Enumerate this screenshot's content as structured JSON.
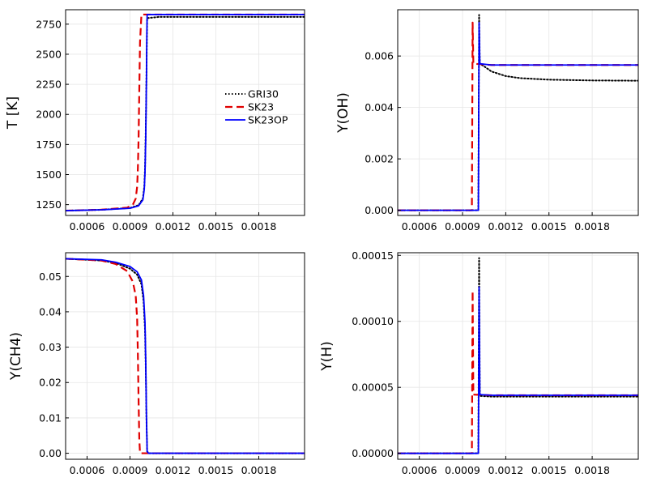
{
  "chart_data": [
    {
      "type": "line",
      "title": "",
      "xlabel": "",
      "ylabel": "T [K]",
      "xlim": [
        0.00045,
        0.00212
      ],
      "ylim": [
        1160,
        2870
      ],
      "xticks": [
        0.0006,
        0.0009,
        0.0012,
        0.0015,
        0.0018
      ],
      "xtick_labels": [
        "0.0006",
        "0.0009",
        "0.0012",
        "0.0015",
        "0.0018"
      ],
      "yticks": [
        1250,
        1500,
        1750,
        2000,
        2250,
        2500,
        2750
      ],
      "ytick_labels": [
        "1250",
        "1500",
        "1750",
        "2000",
        "2250",
        "2500",
        "2750"
      ],
      "grid": true,
      "legend": "right",
      "series": [
        {
          "name": "GRI30",
          "color": "#000000",
          "style": "dotted",
          "points": [
            [
              0.00045,
              1200
            ],
            [
              0.0007,
              1207
            ],
            [
              0.0009,
              1222
            ],
            [
              0.00096,
              1245
            ],
            [
              0.00099,
              1300
            ],
            [
              0.001,
              1400
            ],
            [
              0.001005,
              1550
            ],
            [
              0.00101,
              1850
            ],
            [
              0.001015,
              2300
            ],
            [
              0.001018,
              2650
            ],
            [
              0.00102,
              2800
            ],
            [
              0.0011,
              2810
            ],
            [
              0.00212,
              2810
            ]
          ]
        },
        {
          "name": "SK23",
          "color": "#e00000",
          "style": "dashed",
          "points": [
            [
              0.00045,
              1200
            ],
            [
              0.0007,
              1208
            ],
            [
              0.00088,
              1225
            ],
            [
              0.00092,
              1250
            ],
            [
              0.00094,
              1300
            ],
            [
              0.00095,
              1400
            ],
            [
              0.000955,
              1550
            ],
            [
              0.00096,
              1800
            ],
            [
              0.000965,
              2200
            ],
            [
              0.00097,
              2600
            ],
            [
              0.00098,
              2830
            ],
            [
              0.0011,
              2830
            ],
            [
              0.00212,
              2830
            ]
          ]
        },
        {
          "name": "SK23OP",
          "color": "#0000ff",
          "style": "solid",
          "points": [
            [
              0.00045,
              1200
            ],
            [
              0.0007,
              1207
            ],
            [
              0.0009,
              1220
            ],
            [
              0.00096,
              1240
            ],
            [
              0.00099,
              1290
            ],
            [
              0.001,
              1380
            ],
            [
              0.001005,
              1520
            ],
            [
              0.00101,
              1800
            ],
            [
              0.001015,
              2300
            ],
            [
              0.001018,
              2700
            ],
            [
              0.00102,
              2830
            ],
            [
              0.0011,
              2830
            ],
            [
              0.00212,
              2830
            ]
          ]
        }
      ]
    },
    {
      "type": "line",
      "title": "",
      "xlabel": "",
      "ylabel": "Y(OH)",
      "xlim": [
        0.00045,
        0.00212
      ],
      "ylim": [
        -0.0002,
        0.0078
      ],
      "xticks": [
        0.0006,
        0.0009,
        0.0012,
        0.0015,
        0.0018
      ],
      "xtick_labels": [
        "0.0006",
        "0.0009",
        "0.0012",
        "0.0015",
        "0.0018"
      ],
      "yticks": [
        0,
        0.002,
        0.004,
        0.006
      ],
      "ytick_labels": [
        "0.000",
        "0.002",
        "0.004",
        "0.006"
      ],
      "grid": true,
      "series": [
        {
          "name": "GRI30",
          "color": "#000000",
          "style": "dotted",
          "points": [
            [
              0.00045,
              0
            ],
            [
              0.00101,
              0
            ],
            [
              0.001015,
              0.0076
            ],
            [
              0.00102,
              0.0057
            ],
            [
              0.00105,
              0.0056
            ],
            [
              0.0011,
              0.0054
            ],
            [
              0.0012,
              0.00522
            ],
            [
              0.0013,
              0.00514
            ],
            [
              0.0015,
              0.00508
            ],
            [
              0.0018,
              0.00505
            ],
            [
              0.00212,
              0.00504
            ]
          ]
        },
        {
          "name": "SK23",
          "color": "#e00000",
          "style": "dashed",
          "points": [
            [
              0.00045,
              0
            ],
            [
              0.000965,
              0
            ],
            [
              0.00097,
              0.0073
            ],
            [
              0.000975,
              0.0057
            ],
            [
              0.0011,
              0.00565
            ],
            [
              0.00212,
              0.00565
            ]
          ]
        },
        {
          "name": "SK23OP",
          "color": "#0000ff",
          "style": "solid",
          "points": [
            [
              0.00045,
              0
            ],
            [
              0.00101,
              0
            ],
            [
              0.001015,
              0.0073
            ],
            [
              0.00102,
              0.0057
            ],
            [
              0.0011,
              0.00565
            ],
            [
              0.00212,
              0.00565
            ]
          ]
        }
      ]
    },
    {
      "type": "line",
      "title": "",
      "xlabel": "",
      "ylabel": "Y(CH4)",
      "xlim": [
        0.00045,
        0.00212
      ],
      "ylim": [
        -0.0017,
        0.0567
      ],
      "xticks": [
        0.0006,
        0.0009,
        0.0012,
        0.0015,
        0.0018
      ],
      "xtick_labels": [
        "0.0006",
        "0.0009",
        "0.0012",
        "0.0015",
        "0.0018"
      ],
      "yticks": [
        0,
        0.01,
        0.02,
        0.03,
        0.04,
        0.05
      ],
      "ytick_labels": [
        "0.00",
        "0.01",
        "0.02",
        "0.03",
        "0.04",
        "0.05"
      ],
      "grid": true,
      "series": [
        {
          "name": "GRI30",
          "color": "#000000",
          "style": "dotted",
          "points": [
            [
              0.00045,
              0.055
            ],
            [
              0.0007,
              0.0545
            ],
            [
              0.0008,
              0.0538
            ],
            [
              0.0009,
              0.0522
            ],
            [
              0.00095,
              0.0505
            ],
            [
              0.00098,
              0.0478
            ],
            [
              0.000995,
              0.043
            ],
            [
              0.001005,
              0.035
            ],
            [
              0.00101,
              0.025
            ],
            [
              0.001015,
              0.01
            ],
            [
              0.00102,
              0.0005
            ],
            [
              0.00103,
              0
            ],
            [
              0.00212,
              0
            ]
          ]
        },
        {
          "name": "SK23",
          "color": "#e00000",
          "style": "dashed",
          "points": [
            [
              0.00045,
              0.055
            ],
            [
              0.0007,
              0.0545
            ],
            [
              0.0008,
              0.0535
            ],
            [
              0.00088,
              0.0515
            ],
            [
              0.00092,
              0.0485
            ],
            [
              0.00094,
              0.0445
            ],
            [
              0.00095,
              0.038
            ],
            [
              0.000955,
              0.028
            ],
            [
              0.00096,
              0.015
            ],
            [
              0.000965,
              0.004
            ],
            [
              0.00097,
              0
            ],
            [
              0.00212,
              0
            ]
          ]
        },
        {
          "name": "SK23OP",
          "color": "#0000ff",
          "style": "solid",
          "points": [
            [
              0.00045,
              0.055
            ],
            [
              0.0007,
              0.0547
            ],
            [
              0.0008,
              0.054
            ],
            [
              0.0009,
              0.0528
            ],
            [
              0.00095,
              0.0513
            ],
            [
              0.00098,
              0.049
            ],
            [
              0.000995,
              0.0445
            ],
            [
              0.001005,
              0.037
            ],
            [
              0.00101,
              0.026
            ],
            [
              0.001015,
              0.01
            ],
            [
              0.00102,
              0.0005
            ],
            [
              0.00103,
              0
            ],
            [
              0.00212,
              0
            ]
          ]
        }
      ]
    },
    {
      "type": "line",
      "title": "",
      "xlabel": "",
      "ylabel": "Y(H)",
      "xlim": [
        0.00045,
        0.00212
      ],
      "ylim": [
        -4.5e-06,
        0.000152
      ],
      "xticks": [
        0.0006,
        0.0009,
        0.0012,
        0.0015,
        0.0018
      ],
      "xtick_labels": [
        "0.0006",
        "0.0009",
        "0.0012",
        "0.0015",
        "0.0018"
      ],
      "yticks": [
        0,
        5e-05,
        0.0001,
        0.00015
      ],
      "ytick_labels": [
        "0.00000",
        "0.00005",
        "0.00010",
        "0.00015"
      ],
      "grid": true,
      "series": [
        {
          "name": "GRI30",
          "color": "#000000",
          "style": "dotted",
          "points": [
            [
              0.00045,
              0
            ],
            [
              0.00101,
              0
            ],
            [
              0.001015,
              0.000148
            ],
            [
              0.00102,
              4.35e-05
            ],
            [
              0.0011,
              4.3e-05
            ],
            [
              0.00212,
              4.3e-05
            ]
          ]
        },
        {
          "name": "SK23",
          "color": "#e00000",
          "style": "dashed",
          "points": [
            [
              0.00045,
              0
            ],
            [
              0.000965,
              0
            ],
            [
              0.00097,
              0.000123
            ],
            [
              0.000975,
              4.45e-05
            ],
            [
              0.0011,
              4.4e-05
            ],
            [
              0.00212,
              4.4e-05
            ]
          ]
        },
        {
          "name": "SK23OP",
          "color": "#0000ff",
          "style": "solid",
          "points": [
            [
              0.00045,
              0
            ],
            [
              0.00101,
              0
            ],
            [
              0.001015,
              0.000126
            ],
            [
              0.00102,
              4.45e-05
            ],
            [
              0.0011,
              4.4e-05
            ],
            [
              0.00212,
              4.4e-05
            ]
          ]
        }
      ]
    }
  ]
}
